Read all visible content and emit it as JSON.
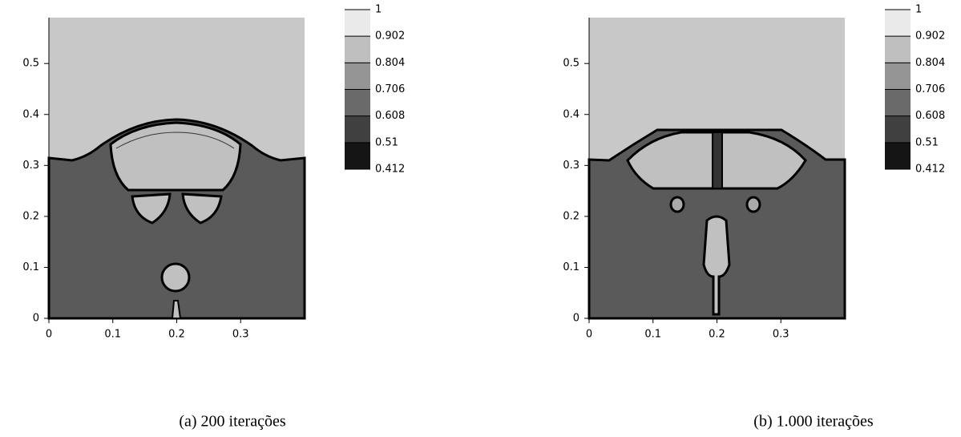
{
  "chart_data": [
    {
      "type": "contour",
      "caption": "(a) 200 iterações",
      "xlim": [
        0,
        0.4
      ],
      "ylim": [
        0,
        0.59
      ],
      "xticks": [
        0,
        0.1,
        0.2,
        0.3
      ],
      "yticks": [
        0,
        0.1,
        0.2,
        0.3,
        0.4,
        0.5
      ],
      "clim": [
        0.412,
        1
      ],
      "cticks": [
        1,
        0.902,
        0.804,
        0.706,
        0.608,
        0.51,
        0.412
      ]
    },
    {
      "type": "contour",
      "caption": "(b) 1.000 iterações",
      "xlim": [
        0,
        0.4
      ],
      "ylim": [
        0,
        0.59
      ],
      "xticks": [
        0,
        0.1,
        0.2,
        0.3
      ],
      "yticks": [
        0,
        0.1,
        0.2,
        0.3,
        0.4,
        0.5
      ],
      "clim": [
        0.412,
        1
      ],
      "cticks": [
        1,
        0.902,
        0.804,
        0.706,
        0.608,
        0.51,
        0.412
      ]
    }
  ]
}
